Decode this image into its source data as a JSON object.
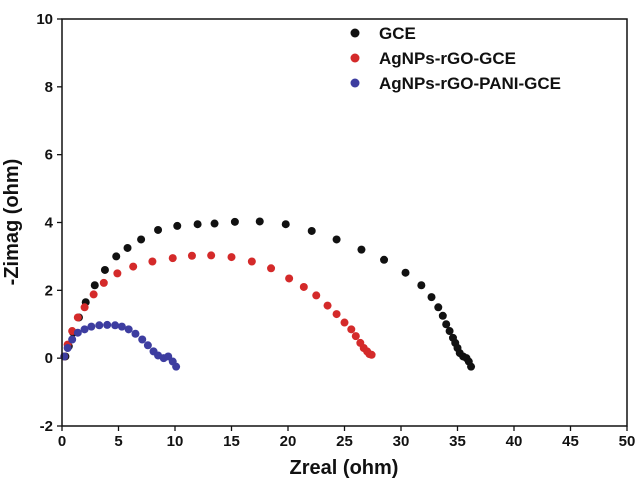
{
  "chart_data": {
    "type": "scatter",
    "xlabel": "Zreal (ohm)",
    "ylabel": "-Zimag (ohm)",
    "xlim": [
      0,
      50
    ],
    "ylim": [
      -2,
      10
    ],
    "xticks": [
      0,
      5,
      10,
      15,
      20,
      25,
      30,
      35,
      40,
      45,
      50
    ],
    "yticks": [
      -2,
      0,
      2,
      4,
      6,
      8,
      10
    ],
    "grid": false,
    "legend_position": "top-right",
    "series": [
      {
        "name": "GCE",
        "color": "#111111",
        "points": [
          [
            0.3,
            0.05
          ],
          [
            0.6,
            0.35
          ],
          [
            1.0,
            0.75
          ],
          [
            1.5,
            1.2
          ],
          [
            2.1,
            1.65
          ],
          [
            2.9,
            2.15
          ],
          [
            3.8,
            2.6
          ],
          [
            4.8,
            3.0
          ],
          [
            5.8,
            3.25
          ],
          [
            7.0,
            3.5
          ],
          [
            8.5,
            3.78
          ],
          [
            10.2,
            3.9
          ],
          [
            12.0,
            3.95
          ],
          [
            13.5,
            3.97
          ],
          [
            15.3,
            4.02
          ],
          [
            17.5,
            4.03
          ],
          [
            19.8,
            3.95
          ],
          [
            22.1,
            3.75
          ],
          [
            24.3,
            3.5
          ],
          [
            26.5,
            3.2
          ],
          [
            28.5,
            2.9
          ],
          [
            30.4,
            2.52
          ],
          [
            31.8,
            2.15
          ],
          [
            32.7,
            1.8
          ],
          [
            33.3,
            1.5
          ],
          [
            33.7,
            1.25
          ],
          [
            34.0,
            1.0
          ],
          [
            34.3,
            0.8
          ],
          [
            34.6,
            0.6
          ],
          [
            34.8,
            0.45
          ],
          [
            35.0,
            0.3
          ],
          [
            35.2,
            0.15
          ],
          [
            35.5,
            0.05
          ],
          [
            35.8,
            0.0
          ],
          [
            36.0,
            -0.1
          ],
          [
            36.2,
            -0.25
          ]
        ]
      },
      {
        "name": "AgNPs-rGO-GCE",
        "color": "#d42a2a",
        "points": [
          [
            0.2,
            0.05
          ],
          [
            0.5,
            0.4
          ],
          [
            0.9,
            0.8
          ],
          [
            1.4,
            1.2
          ],
          [
            2.0,
            1.5
          ],
          [
            2.8,
            1.88
          ],
          [
            3.7,
            2.22
          ],
          [
            4.9,
            2.5
          ],
          [
            6.3,
            2.7
          ],
          [
            8.0,
            2.85
          ],
          [
            9.8,
            2.95
          ],
          [
            11.5,
            3.02
          ],
          [
            13.2,
            3.03
          ],
          [
            15.0,
            2.98
          ],
          [
            16.8,
            2.85
          ],
          [
            18.5,
            2.65
          ],
          [
            20.1,
            2.35
          ],
          [
            21.4,
            2.1
          ],
          [
            22.5,
            1.85
          ],
          [
            23.5,
            1.55
          ],
          [
            24.3,
            1.3
          ],
          [
            25.0,
            1.05
          ],
          [
            25.6,
            0.85
          ],
          [
            26.0,
            0.65
          ],
          [
            26.4,
            0.45
          ],
          [
            26.7,
            0.3
          ],
          [
            27.0,
            0.2
          ],
          [
            27.2,
            0.12
          ],
          [
            27.4,
            0.1
          ]
        ]
      },
      {
        "name": "AgNPs-rGO-PANI-GCE",
        "color": "#3d3da0",
        "points": [
          [
            0.2,
            0.05
          ],
          [
            0.5,
            0.3
          ],
          [
            0.9,
            0.55
          ],
          [
            1.4,
            0.75
          ],
          [
            2.0,
            0.85
          ],
          [
            2.6,
            0.93
          ],
          [
            3.3,
            0.97
          ],
          [
            4.0,
            0.98
          ],
          [
            4.7,
            0.97
          ],
          [
            5.3,
            0.93
          ],
          [
            5.9,
            0.85
          ],
          [
            6.5,
            0.72
          ],
          [
            7.1,
            0.55
          ],
          [
            7.6,
            0.38
          ],
          [
            8.1,
            0.2
          ],
          [
            8.5,
            0.08
          ],
          [
            9.0,
            0.0
          ],
          [
            9.4,
            0.05
          ],
          [
            9.8,
            -0.1
          ],
          [
            10.1,
            -0.25
          ]
        ]
      }
    ]
  }
}
